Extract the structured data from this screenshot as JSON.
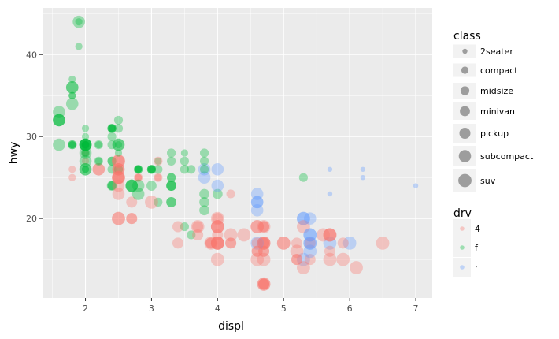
{
  "chart_data": {
    "type": "scatter",
    "title": "",
    "xlabel": "displ",
    "ylabel": "hwy",
    "xlim": [
      1.35,
      7.25
    ],
    "ylim": [
      10.3,
      45.7
    ],
    "x_ticks": [
      2,
      3,
      4,
      5,
      6,
      7
    ],
    "y_ticks": [
      20,
      30,
      40
    ],
    "grid": true,
    "point_alpha": 0.35,
    "colors": {
      "panel_bg": "#ebebeb",
      "grid": "#ffffff",
      "4": "#f8766d",
      "f": "#00ba38",
      "r": "#619cff"
    },
    "legend": {
      "placement": "right",
      "class": {
        "title": "class",
        "items": [
          "2seater",
          "compact",
          "midsize",
          "minivan",
          "pickup",
          "subcompact",
          "suv"
        ]
      },
      "drv": {
        "title": "drv",
        "items": [
          "4",
          "f",
          "r"
        ]
      }
    },
    "fields": [
      "displ",
      "hwy",
      "drv",
      "class"
    ],
    "points": [
      [
        1.8,
        29,
        "f",
        "compact"
      ],
      [
        1.8,
        29,
        "f",
        "compact"
      ],
      [
        2.0,
        31,
        "f",
        "compact"
      ],
      [
        2.0,
        30,
        "f",
        "compact"
      ],
      [
        2.8,
        26,
        "f",
        "compact"
      ],
      [
        2.8,
        26,
        "f",
        "compact"
      ],
      [
        3.1,
        27,
        "f",
        "compact"
      ],
      [
        1.8,
        26,
        "4",
        "compact"
      ],
      [
        1.8,
        25,
        "4",
        "compact"
      ],
      [
        2.0,
        28,
        "4",
        "compact"
      ],
      [
        2.0,
        27,
        "4",
        "compact"
      ],
      [
        2.8,
        25,
        "4",
        "compact"
      ],
      [
        2.8,
        25,
        "4",
        "compact"
      ],
      [
        3.1,
        25,
        "4",
        "compact"
      ],
      [
        3.1,
        27,
        "4",
        "midsize"
      ],
      [
        2.8,
        25,
        "4",
        "midsize"
      ],
      [
        3.1,
        25,
        "4",
        "midsize"
      ],
      [
        4.2,
        23,
        "4",
        "midsize"
      ],
      [
        5.3,
        20,
        "r",
        "suv"
      ],
      [
        5.3,
        15,
        "r",
        "suv"
      ],
      [
        5.3,
        20,
        "r",
        "suv"
      ],
      [
        5.7,
        17,
        "r",
        "suv"
      ],
      [
        6.0,
        17,
        "r",
        "suv"
      ],
      [
        5.7,
        26,
        "r",
        "2seater"
      ],
      [
        5.7,
        23,
        "r",
        "2seater"
      ],
      [
        6.2,
        26,
        "r",
        "2seater"
      ],
      [
        6.2,
        25,
        "r",
        "2seater"
      ],
      [
        7.0,
        24,
        "r",
        "2seater"
      ],
      [
        5.3,
        19,
        "4",
        "suv"
      ],
      [
        5.3,
        14,
        "4",
        "suv"
      ],
      [
        5.7,
        15,
        "4",
        "suv"
      ],
      [
        6.5,
        17,
        "4",
        "suv"
      ],
      [
        2.4,
        24,
        "f",
        "midsize"
      ],
      [
        2.4,
        24,
        "f",
        "midsize"
      ],
      [
        3.1,
        22,
        "f",
        "midsize"
      ],
      [
        3.5,
        19,
        "f",
        "midsize"
      ],
      [
        3.6,
        18,
        "f",
        "midsize"
      ],
      [
        2.4,
        24,
        "f",
        "minivan"
      ],
      [
        3.0,
        24,
        "f",
        "minivan"
      ],
      [
        3.3,
        22,
        "f",
        "minivan"
      ],
      [
        3.3,
        22,
        "f",
        "minivan"
      ],
      [
        3.3,
        24,
        "f",
        "minivan"
      ],
      [
        3.3,
        24,
        "f",
        "minivan"
      ],
      [
        3.3,
        24,
        "f",
        "minivan"
      ],
      [
        3.8,
        22,
        "f",
        "minivan"
      ],
      [
        3.8,
        21,
        "f",
        "minivan"
      ],
      [
        3.8,
        23,
        "f",
        "minivan"
      ],
      [
        4.0,
        23,
        "f",
        "minivan"
      ],
      [
        3.7,
        19,
        "4",
        "pickup"
      ],
      [
        3.7,
        18,
        "4",
        "pickup"
      ],
      [
        3.9,
        17,
        "4",
        "pickup"
      ],
      [
        3.9,
        17,
        "4",
        "pickup"
      ],
      [
        4.7,
        19,
        "4",
        "pickup"
      ],
      [
        4.7,
        19,
        "4",
        "pickup"
      ],
      [
        4.7,
        12,
        "4",
        "pickup"
      ],
      [
        5.2,
        17,
        "4",
        "pickup"
      ],
      [
        5.2,
        15,
        "4",
        "pickup"
      ],
      [
        3.9,
        17,
        "4",
        "suv"
      ],
      [
        4.7,
        17,
        "4",
        "suv"
      ],
      [
        4.7,
        12,
        "4",
        "suv"
      ],
      [
        4.7,
        17,
        "4",
        "suv"
      ],
      [
        5.2,
        16,
        "4",
        "suv"
      ],
      [
        5.7,
        18,
        "4",
        "suv"
      ],
      [
        5.9,
        15,
        "4",
        "suv"
      ],
      [
        4.7,
        16,
        "4",
        "pickup"
      ],
      [
        4.7,
        12,
        "4",
        "pickup"
      ],
      [
        4.7,
        17,
        "4",
        "pickup"
      ],
      [
        4.7,
        17,
        "4",
        "pickup"
      ],
      [
        4.7,
        16,
        "4",
        "pickup"
      ],
      [
        4.7,
        12,
        "4",
        "pickup"
      ],
      [
        5.2,
        15,
        "4",
        "pickup"
      ],
      [
        5.7,
        16,
        "4",
        "pickup"
      ],
      [
        5.9,
        17,
        "4",
        "pickup"
      ],
      [
        4.6,
        17,
        "r",
        "suv"
      ],
      [
        5.4,
        17,
        "r",
        "suv"
      ],
      [
        5.4,
        18,
        "r",
        "suv"
      ],
      [
        4.0,
        17,
        "4",
        "suv"
      ],
      [
        4.0,
        19,
        "4",
        "suv"
      ],
      [
        4.0,
        17,
        "4",
        "suv"
      ],
      [
        4.0,
        19,
        "4",
        "suv"
      ],
      [
        4.6,
        19,
        "4",
        "suv"
      ],
      [
        5.0,
        17,
        "4",
        "suv"
      ],
      [
        4.2,
        17,
        "4",
        "pickup"
      ],
      [
        4.2,
        17,
        "4",
        "pickup"
      ],
      [
        4.6,
        16,
        "4",
        "pickup"
      ],
      [
        4.6,
        16,
        "4",
        "pickup"
      ],
      [
        4.6,
        17,
        "4",
        "pickup"
      ],
      [
        5.4,
        15,
        "4",
        "pickup"
      ],
      [
        5.4,
        17,
        "4",
        "pickup"
      ],
      [
        3.8,
        26,
        "r",
        "subcompact"
      ],
      [
        3.8,
        25,
        "r",
        "subcompact"
      ],
      [
        4.0,
        26,
        "r",
        "subcompact"
      ],
      [
        4.0,
        24,
        "r",
        "subcompact"
      ],
      [
        4.6,
        21,
        "r",
        "subcompact"
      ],
      [
        4.6,
        22,
        "r",
        "subcompact"
      ],
      [
        4.6,
        23,
        "r",
        "subcompact"
      ],
      [
        4.6,
        22,
        "r",
        "subcompact"
      ],
      [
        5.4,
        20,
        "r",
        "subcompact"
      ],
      [
        1.6,
        33,
        "f",
        "subcompact"
      ],
      [
        1.6,
        32,
        "f",
        "subcompact"
      ],
      [
        1.6,
        32,
        "f",
        "subcompact"
      ],
      [
        1.6,
        29,
        "f",
        "subcompact"
      ],
      [
        1.6,
        32,
        "f",
        "subcompact"
      ],
      [
        1.8,
        34,
        "f",
        "subcompact"
      ],
      [
        1.8,
        36,
        "f",
        "subcompact"
      ],
      [
        1.8,
        36,
        "f",
        "subcompact"
      ],
      [
        2.0,
        29,
        "f",
        "subcompact"
      ],
      [
        2.4,
        26,
        "f",
        "midsize"
      ],
      [
        2.4,
        27,
        "f",
        "midsize"
      ],
      [
        2.4,
        30,
        "f",
        "midsize"
      ],
      [
        2.4,
        31,
        "f",
        "midsize"
      ],
      [
        2.5,
        26,
        "f",
        "midsize"
      ],
      [
        2.5,
        26,
        "f",
        "midsize"
      ],
      [
        3.3,
        28,
        "f",
        "midsize"
      ],
      [
        2.0,
        26,
        "f",
        "subcompact"
      ],
      [
        2.0,
        29,
        "f",
        "subcompact"
      ],
      [
        2.0,
        28,
        "f",
        "subcompact"
      ],
      [
        2.0,
        27,
        "f",
        "subcompact"
      ],
      [
        2.7,
        24,
        "f",
        "subcompact"
      ],
      [
        2.7,
        24,
        "f",
        "subcompact"
      ],
      [
        2.7,
        24,
        "f",
        "subcompact"
      ],
      [
        3.0,
        22,
        "4",
        "suv"
      ],
      [
        3.7,
        19,
        "4",
        "suv"
      ],
      [
        4.0,
        20,
        "4",
        "suv"
      ],
      [
        4.7,
        17,
        "4",
        "suv"
      ],
      [
        4.7,
        12,
        "4",
        "suv"
      ],
      [
        4.7,
        19,
        "4",
        "suv"
      ],
      [
        5.7,
        18,
        "4",
        "suv"
      ],
      [
        6.1,
        14,
        "4",
        "suv"
      ],
      [
        4.0,
        15,
        "4",
        "suv"
      ],
      [
        4.2,
        18,
        "4",
        "suv"
      ],
      [
        4.4,
        18,
        "4",
        "suv"
      ],
      [
        4.6,
        15,
        "4",
        "suv"
      ],
      [
        5.4,
        17,
        "r",
        "suv"
      ],
      [
        5.4,
        16,
        "r",
        "suv"
      ],
      [
        5.4,
        18,
        "r",
        "suv"
      ],
      [
        4.0,
        17,
        "4",
        "suv"
      ],
      [
        4.0,
        19,
        "4",
        "suv"
      ],
      [
        4.6,
        19,
        "4",
        "suv"
      ],
      [
        5.0,
        17,
        "4",
        "suv"
      ],
      [
        2.4,
        29,
        "f",
        "midsize"
      ],
      [
        2.4,
        27,
        "f",
        "midsize"
      ],
      [
        2.5,
        31,
        "f",
        "midsize"
      ],
      [
        2.5,
        32,
        "f",
        "midsize"
      ],
      [
        3.5,
        27,
        "f",
        "midsize"
      ],
      [
        3.5,
        26,
        "f",
        "midsize"
      ],
      [
        3.0,
        26,
        "f",
        "midsize"
      ],
      [
        3.3,
        25,
        "f",
        "midsize"
      ],
      [
        3.3,
        25,
        "f",
        "midsize"
      ],
      [
        4.0,
        17,
        "4",
        "suv"
      ],
      [
        5.6,
        18,
        "4",
        "suv"
      ],
      [
        3.1,
        26,
        "f",
        "midsize"
      ],
      [
        3.8,
        26,
        "f",
        "midsize"
      ],
      [
        3.8,
        27,
        "f",
        "midsize"
      ],
      [
        3.8,
        28,
        "f",
        "midsize"
      ],
      [
        5.3,
        25,
        "f",
        "midsize"
      ],
      [
        2.5,
        25,
        "4",
        "subcompact"
      ],
      [
        2.5,
        24,
        "4",
        "subcompact"
      ],
      [
        2.5,
        27,
        "4",
        "subcompact"
      ],
      [
        2.5,
        25,
        "4",
        "subcompact"
      ],
      [
        2.5,
        26,
        "4",
        "subcompact"
      ],
      [
        2.5,
        23,
        "4",
        "subcompact"
      ],
      [
        2.2,
        26,
        "4",
        "subcompact"
      ],
      [
        2.2,
        26,
        "4",
        "subcompact"
      ],
      [
        2.5,
        26,
        "4",
        "subcompact"
      ],
      [
        2.5,
        26,
        "4",
        "subcompact"
      ],
      [
        2.5,
        25,
        "4",
        "suv"
      ],
      [
        2.5,
        27,
        "4",
        "suv"
      ],
      [
        2.5,
        25,
        "4",
        "suv"
      ],
      [
        2.5,
        27,
        "4",
        "suv"
      ],
      [
        2.5,
        20,
        "4",
        "suv"
      ],
      [
        2.5,
        20,
        "4",
        "suv"
      ],
      [
        2.2,
        27,
        "f",
        "compact"
      ],
      [
        2.2,
        29,
        "f",
        "compact"
      ],
      [
        2.4,
        31,
        "f",
        "compact"
      ],
      [
        2.4,
        31,
        "f",
        "compact"
      ],
      [
        3.0,
        26,
        "f",
        "compact"
      ],
      [
        3.0,
        26,
        "f",
        "compact"
      ],
      [
        3.5,
        28,
        "f",
        "compact"
      ],
      [
        2.2,
        27,
        "f",
        "midsize"
      ],
      [
        2.2,
        29,
        "f",
        "midsize"
      ],
      [
        2.4,
        31,
        "f",
        "midsize"
      ],
      [
        2.4,
        31,
        "f",
        "midsize"
      ],
      [
        3.0,
        26,
        "f",
        "midsize"
      ],
      [
        3.0,
        26,
        "f",
        "midsize"
      ],
      [
        3.3,
        27,
        "f",
        "midsize"
      ],
      [
        1.8,
        35,
        "f",
        "compact"
      ],
      [
        1.8,
        37,
        "f",
        "compact"
      ],
      [
        1.8,
        35,
        "f",
        "compact"
      ],
      [
        4.7,
        15,
        "4",
        "suv"
      ],
      [
        5.7,
        18,
        "4",
        "suv"
      ],
      [
        2.7,
        20,
        "4",
        "pickup"
      ],
      [
        2.7,
        20,
        "4",
        "pickup"
      ],
      [
        2.7,
        22,
        "4",
        "pickup"
      ],
      [
        3.4,
        17,
        "4",
        "pickup"
      ],
      [
        3.4,
        19,
        "4",
        "pickup"
      ],
      [
        4.0,
        18,
        "4",
        "pickup"
      ],
      [
        4.0,
        20,
        "4",
        "pickup"
      ],
      [
        2.0,
        29,
        "f",
        "subcompact"
      ],
      [
        2.0,
        26,
        "f",
        "compact"
      ],
      [
        2.0,
        29,
        "f",
        "compact"
      ],
      [
        2.0,
        29,
        "f",
        "compact"
      ],
      [
        2.0,
        28,
        "f",
        "compact"
      ],
      [
        2.0,
        29,
        "f",
        "compact"
      ],
      [
        2.8,
        26,
        "f",
        "compact"
      ],
      [
        1.9,
        44,
        "f",
        "subcompact"
      ],
      [
        2.0,
        29,
        "f",
        "subcompact"
      ],
      [
        2.0,
        26,
        "f",
        "subcompact"
      ],
      [
        2.0,
        29,
        "f",
        "subcompact"
      ],
      [
        2.5,
        29,
        "f",
        "subcompact"
      ],
      [
        2.5,
        29,
        "f",
        "subcompact"
      ],
      [
        2.8,
        23,
        "f",
        "subcompact"
      ],
      [
        2.8,
        24,
        "f",
        "subcompact"
      ],
      [
        1.9,
        44,
        "f",
        "compact"
      ],
      [
        1.9,
        41,
        "f",
        "compact"
      ],
      [
        2.0,
        29,
        "f",
        "compact"
      ],
      [
        2.0,
        26,
        "f",
        "compact"
      ],
      [
        2.5,
        28,
        "f",
        "compact"
      ],
      [
        2.5,
        29,
        "f",
        "compact"
      ],
      [
        1.8,
        29,
        "f",
        "midsize"
      ],
      [
        1.8,
        29,
        "f",
        "midsize"
      ],
      [
        2.0,
        28,
        "f",
        "midsize"
      ],
      [
        2.0,
        29,
        "f",
        "midsize"
      ],
      [
        2.8,
        26,
        "f",
        "midsize"
      ],
      [
        2.8,
        26,
        "f",
        "midsize"
      ],
      [
        3.6,
        26,
        "f",
        "midsize"
      ]
    ]
  }
}
